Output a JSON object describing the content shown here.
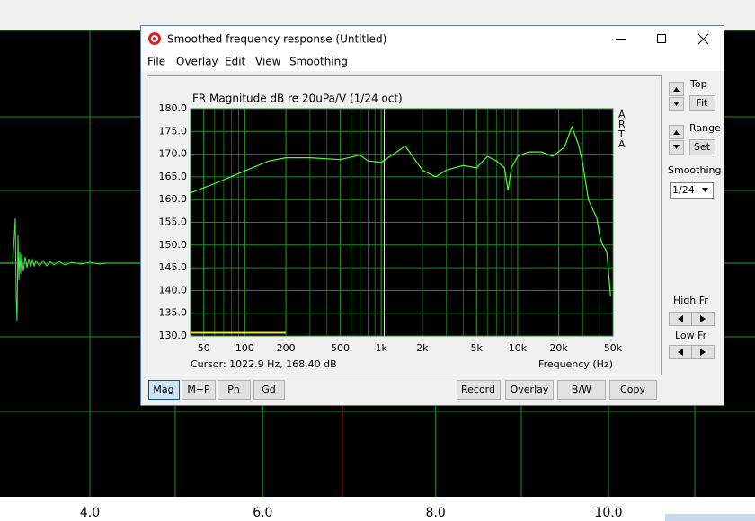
{
  "window": {
    "title": "Smoothed frequency response (Untitled)",
    "menu": [
      "File",
      "Overlay",
      "Edit",
      "View",
      "Smoothing"
    ]
  },
  "background_chart": {
    "xticks": [
      {
        "value": 4,
        "label": "4.0"
      },
      {
        "value": 6,
        "label": "6.0"
      },
      {
        "value": 8,
        "label": "8.0"
      },
      {
        "value": 10,
        "label": "10.0"
      }
    ]
  },
  "chart_data": {
    "type": "line",
    "title": "FR Magnitude dB re 20uPa/V (1/24 oct)",
    "xlabel": "Frequency (Hz)",
    "side_label": "A R T A",
    "cursor": "Cursor: 1022.9 Hz, 168.40 dB",
    "xscale": "log",
    "grid": true,
    "xlim": [
      40,
      50000
    ],
    "ylim": [
      130,
      180
    ],
    "xticks": [
      50,
      100,
      200,
      500,
      {
        "value": 1000,
        "label": "1k"
      },
      {
        "value": 2000,
        "label": "2k"
      },
      {
        "value": 5000,
        "label": "5k"
      },
      {
        "value": 10000,
        "label": "10k"
      },
      {
        "value": 20000,
        "label": "20k"
      },
      {
        "value": 50000,
        "label": "50k"
      }
    ],
    "yticks": [
      {
        "value": 130,
        "label": "130.0"
      },
      {
        "value": 135,
        "label": "135.0"
      },
      {
        "value": 140,
        "label": "140.0"
      },
      {
        "value": 145,
        "label": "145.0"
      },
      {
        "value": 150,
        "label": "150.0"
      },
      {
        "value": 155,
        "label": "155.0"
      },
      {
        "value": 160,
        "label": "160.0"
      },
      {
        "value": 165,
        "label": "165.0"
      },
      {
        "value": 170,
        "label": "170.0"
      },
      {
        "value": 175,
        "label": "175.0"
      },
      {
        "value": 180,
        "label": "180.0"
      }
    ],
    "x": [
      40,
      60,
      100,
      150,
      200,
      300,
      500,
      700,
      800,
      1000,
      1300,
      1500,
      2000,
      2500,
      3000,
      4000,
      5000,
      6000,
      7000,
      8000,
      8500,
      9000,
      10000,
      12000,
      15000,
      18000,
      22000,
      25000,
      28000,
      30000,
      33000,
      36000,
      38000,
      40000,
      42000,
      45000,
      47000,
      48000
    ],
    "series": [
      {
        "color": "#55ff33",
        "values": [
          161.5,
          163.5,
          166.3,
          168.5,
          169.2,
          169.2,
          168.8,
          169.8,
          168.5,
          168.2,
          170.5,
          171.8,
          166.5,
          165,
          166.5,
          167.5,
          167,
          169.5,
          168.5,
          167,
          162,
          167,
          169.5,
          170.5,
          170.5,
          169.5,
          171.5,
          176,
          172,
          168,
          160,
          157.5,
          156,
          152,
          150,
          148.6,
          142,
          138.7
        ]
      }
    ]
  },
  "buttons": [
    "Mag",
    "M+P",
    "Ph",
    "Gd",
    "Record",
    "Overlay",
    "B/W",
    "Copy"
  ],
  "side_panel": {
    "top": "Top",
    "fit": "Fit",
    "range": "Range",
    "set": "Set",
    "smoothing": "Smoothing",
    "smoothing_value": "1/24",
    "high_fr": "High Fr",
    "low_fr": "Low Fr"
  }
}
